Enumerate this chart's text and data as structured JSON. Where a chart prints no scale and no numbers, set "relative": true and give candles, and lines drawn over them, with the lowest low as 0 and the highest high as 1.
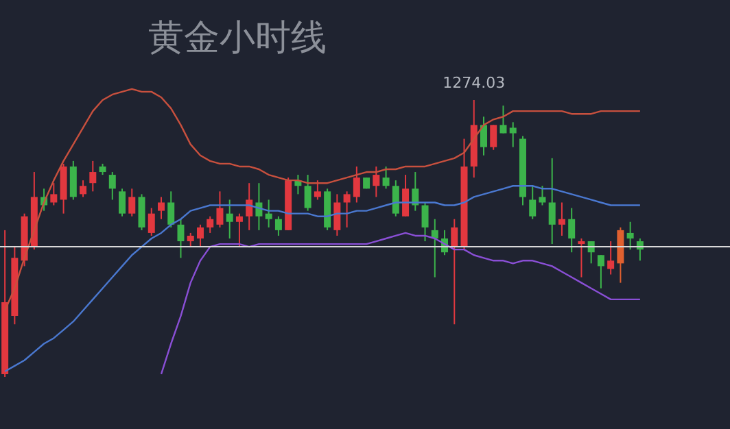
{
  "chart_data": {
    "type": "candlestick",
    "title": "黄金小时线",
    "relative": true,
    "categories": [
      null,
      null,
      null,
      null,
      null,
      null,
      null,
      null,
      null,
      null,
      null,
      null,
      null,
      null,
      null,
      null,
      null,
      null,
      null,
      null,
      null,
      null,
      null,
      null,
      null,
      null,
      null,
      null,
      null,
      null,
      null,
      null,
      null,
      null,
      null,
      null,
      null,
      null,
      null,
      null,
      null,
      null,
      null,
      null,
      null,
      null,
      null,
      null,
      null,
      null,
      null,
      null,
      null,
      null,
      null,
      null,
      null,
      null,
      null,
      null,
      null,
      null,
      null,
      null,
      null,
      null
    ],
    "ohlc": [
      [
        0.01,
        0.53,
        0,
        0.27
      ],
      [
        0.22,
        0.47,
        0.19,
        0.43
      ],
      [
        0.42,
        0.59,
        0.4,
        0.58
      ],
      [
        0.47,
        0.74,
        0.46,
        0.65
      ],
      [
        0.65,
        0.68,
        0.6,
        0.62
      ],
      [
        0.63,
        0.7,
        0.62,
        0.66
      ],
      [
        0.64,
        0.77,
        0.59,
        0.76
      ],
      [
        0.76,
        0.78,
        0.64,
        0.65
      ],
      [
        0.66,
        0.71,
        0.65,
        0.69
      ],
      [
        0.7,
        0.78,
        0.67,
        0.74
      ],
      [
        0.76,
        0.77,
        0.73,
        0.74
      ],
      [
        0.73,
        0.74,
        0.64,
        0.68
      ],
      [
        0.67,
        0.68,
        0.58,
        0.59
      ],
      [
        0.59,
        0.68,
        0.58,
        0.65
      ],
      [
        0.65,
        0.66,
        0.53,
        0.54
      ],
      [
        0.52,
        0.61,
        0.51,
        0.59
      ],
      [
        0.6,
        0.65,
        0.57,
        0.63
      ],
      [
        0.63,
        0.67,
        0.54,
        0.55
      ],
      [
        0.55,
        0.57,
        0.43,
        0.49
      ],
      [
        0.49,
        0.52,
        0.47,
        0.51
      ],
      [
        0.5,
        0.55,
        0.47,
        0.54
      ],
      [
        0.54,
        0.58,
        0.52,
        0.57
      ],
      [
        0.55,
        0.67,
        0.54,
        0.61
      ],
      [
        0.59,
        0.64,
        0.5,
        0.56
      ],
      [
        0.56,
        0.59,
        0.47,
        0.58
      ],
      [
        0.58,
        0.7,
        0.53,
        0.64
      ],
      [
        0.63,
        0.7,
        0.53,
        0.58
      ],
      [
        0.59,
        0.64,
        0.54,
        0.57
      ],
      [
        0.57,
        0.58,
        0.51,
        0.53
      ],
      [
        0.53,
        0.72,
        0.53,
        0.71
      ],
      [
        0.71,
        0.73,
        0.66,
        0.69
      ],
      [
        0.69,
        0.73,
        0.6,
        0.61
      ],
      [
        0.65,
        0.71,
        0.64,
        0.67
      ],
      [
        0.67,
        0.68,
        0.53,
        0.54
      ],
      [
        0.53,
        0.66,
        0.51,
        0.63
      ],
      [
        0.63,
        0.67,
        0.54,
        0.66
      ],
      [
        0.65,
        0.76,
        0.63,
        0.72
      ],
      [
        0.72,
        0.72,
        0.68,
        0.68
      ],
      [
        0.69,
        0.76,
        0.65,
        0.73
      ],
      [
        0.72,
        0.76,
        0.68,
        0.69
      ],
      [
        0.69,
        0.71,
        0.58,
        0.59
      ],
      [
        0.58,
        0.73,
        0.58,
        0.68
      ],
      [
        0.68,
        0.74,
        0.6,
        0.62
      ],
      [
        0.62,
        0.63,
        0.49,
        0.54
      ],
      [
        0.53,
        0.57,
        0.36,
        0.5
      ],
      [
        0.5,
        0.53,
        0.44,
        0.45
      ],
      [
        0.47,
        0.57,
        0.19,
        0.54
      ],
      [
        0.47,
        0.86,
        0.46,
        0.76
      ],
      [
        0.76,
        1,
        0.72,
        0.91
      ],
      [
        0.91,
        0.94,
        0.8,
        0.83
      ],
      [
        0.83,
        0.91,
        0.82,
        0.91
      ],
      [
        0.91,
        0.98,
        0.88,
        0.88
      ],
      [
        0.9,
        0.92,
        0.83,
        0.88
      ],
      [
        0.86,
        0.87,
        0.62,
        0.65
      ],
      [
        0.64,
        0.69,
        0.57,
        0.58
      ],
      [
        0.65,
        0.69,
        0.62,
        0.63
      ],
      [
        0.63,
        0.79,
        0.48,
        0.55
      ],
      [
        0.55,
        0.63,
        0.51,
        0.57
      ],
      [
        0.57,
        0.61,
        0.45,
        0.5
      ],
      [
        0.48,
        0.5,
        0.36,
        0.49
      ],
      [
        0.49,
        0.49,
        0.41,
        0.45
      ],
      [
        0.44,
        0.44,
        0.32,
        0.4
      ],
      [
        0.39,
        0.49,
        0.37,
        0.42
      ],
      [
        0.41,
        0.54,
        0.34,
        0.53
      ],
      [
        0.52,
        0.56,
        0.46,
        0.5
      ],
      [
        0.49,
        0.5,
        0.42,
        0.46
      ]
    ],
    "colors": [
      "#e2383f",
      "#e2383f",
      "#e2383f",
      "#e2383f",
      "#3cb44b",
      "#e2383f",
      "#e2383f",
      "#3cb44b",
      "#e2383f",
      "#e2383f",
      "#3cb44b",
      "#3cb44b",
      "#3cb44b",
      "#e2383f",
      "#3cb44b",
      "#e2383f",
      "#e2383f",
      "#3cb44b",
      "#3cb44b",
      "#e2383f",
      "#e2383f",
      "#e2383f",
      "#e2383f",
      "#3cb44b",
      "#e2383f",
      "#e2383f",
      "#3cb44b",
      "#3cb44b",
      "#3cb44b",
      "#e2383f",
      "#3cb44b",
      "#3cb44b",
      "#e2383f",
      "#3cb44b",
      "#e2383f",
      "#e2383f",
      "#e2383f",
      "#3cb44b",
      "#e2383f",
      "#3cb44b",
      "#3cb44b",
      "#e2383f",
      "#3cb44b",
      "#3cb44b",
      "#3cb44b",
      "#3cb44b",
      "#e2383f",
      "#e2383f",
      "#e2383f",
      "#3cb44b",
      "#e2383f",
      "#3cb44b",
      "#3cb44b",
      "#3cb44b",
      "#3cb44b",
      "#3cb44b",
      "#3cb44b",
      "#e2383f",
      "#3cb44b",
      "#e2383f",
      "#3cb44b",
      "#3cb44b",
      "#e2383f",
      "#e0602f",
      "#3cb44b",
      "#3cb44b"
    ],
    "series": [
      {
        "type": "line",
        "color": "#c8503e",
        "values": [
          0.24,
          0.32,
          0.43,
          0.53,
          0.63,
          0.71,
          0.78,
          0.84,
          0.9,
          0.96,
          1.0,
          1.02,
          1.03,
          1.04,
          1.03,
          1.03,
          1.01,
          0.97,
          0.91,
          0.84,
          0.8,
          0.78,
          0.77,
          0.77,
          0.76,
          0.76,
          0.75,
          0.73,
          0.72,
          0.71,
          0.71,
          0.7,
          0.7,
          0.7,
          0.71,
          0.72,
          0.73,
          0.74,
          0.74,
          0.75,
          0.75,
          0.76,
          0.76,
          0.76,
          0.77,
          0.78,
          0.79,
          0.81,
          0.86,
          0.91,
          0.93,
          0.94,
          0.96,
          0.96,
          0.96,
          0.96,
          0.96,
          0.96,
          0.95,
          0.95,
          0.95,
          0.96,
          0.96,
          0.96,
          0.96,
          0.96
        ]
      },
      {
        "type": "line",
        "color": "#4a78d0",
        "values": [
          0.02,
          0.04,
          0.06,
          0.09,
          0.12,
          0.14,
          0.17,
          0.2,
          0.24,
          0.28,
          0.32,
          0.36,
          0.4,
          0.44,
          0.47,
          0.5,
          0.52,
          0.55,
          0.57,
          0.6,
          0.61,
          0.62,
          0.62,
          0.62,
          0.62,
          0.62,
          0.61,
          0.6,
          0.6,
          0.59,
          0.59,
          0.59,
          0.58,
          0.58,
          0.59,
          0.59,
          0.6,
          0.6,
          0.61,
          0.62,
          0.63,
          0.63,
          0.63,
          0.63,
          0.63,
          0.62,
          0.62,
          0.63,
          0.65,
          0.66,
          0.67,
          0.68,
          0.69,
          0.69,
          0.69,
          0.68,
          0.68,
          0.67,
          0.66,
          0.65,
          0.64,
          0.63,
          0.62,
          0.62,
          0.62,
          0.62
        ]
      },
      {
        "type": "line",
        "color": "#8a4fd6",
        "values": [
          null,
          null,
          null,
          null,
          null,
          null,
          null,
          null,
          null,
          null,
          null,
          null,
          null,
          null,
          null,
          null,
          0.01,
          0.12,
          0.22,
          0.34,
          0.42,
          0.47,
          0.48,
          0.48,
          0.48,
          0.47,
          0.48,
          0.48,
          0.48,
          0.48,
          0.48,
          0.48,
          0.48,
          0.48,
          0.48,
          0.48,
          0.48,
          0.48,
          0.49,
          0.5,
          0.51,
          0.52,
          0.51,
          0.51,
          0.5,
          0.48,
          0.46,
          0.46,
          0.44,
          0.43,
          0.42,
          0.42,
          0.41,
          0.42,
          0.42,
          0.41,
          0.4,
          0.38,
          0.36,
          0.34,
          0.32,
          0.3,
          0.28,
          0.28,
          0.28,
          0.28
        ]
      }
    ],
    "ref_lines": [
      {
        "axis": "y",
        "value": 0.47,
        "color": "#d9d9d9"
      }
    ],
    "annotations": [
      {
        "text": "1274.03",
        "y": 1
      }
    ]
  }
}
